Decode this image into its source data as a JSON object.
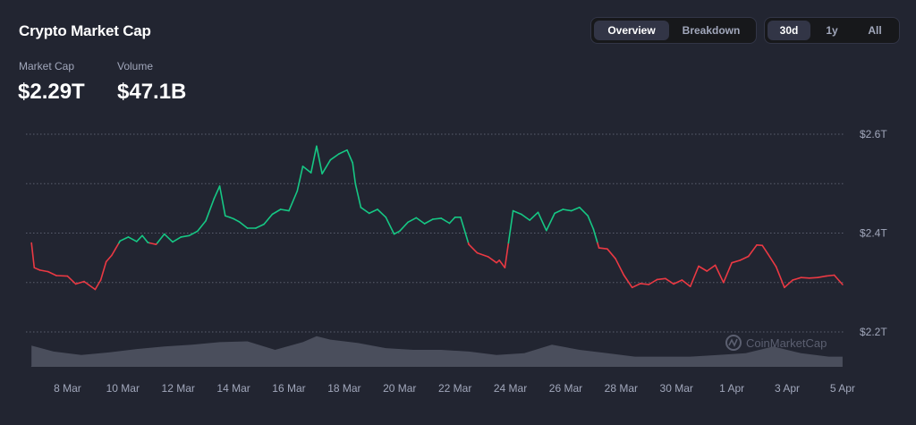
{
  "header": {
    "title": "Crypto Market Cap",
    "view_tabs": [
      {
        "label": "Overview",
        "active": true
      },
      {
        "label": "Breakdown",
        "active": false
      }
    ],
    "range_tabs": [
      {
        "label": "30d",
        "active": true
      },
      {
        "label": "1y",
        "active": false
      },
      {
        "label": "All",
        "active": false
      }
    ]
  },
  "stats": {
    "market_cap_label": "Market Cap",
    "market_cap_value": "$2.29T",
    "volume_label": "Volume",
    "volume_value": "$47.1B"
  },
  "watermark": "CoinMarketCap",
  "colors": {
    "background": "#222531",
    "up": "#16c784",
    "down": "#ea3943",
    "volume": "#585c6b",
    "grid": "#5a5e6e",
    "text_muted": "#a1a7bb"
  },
  "chart_data": {
    "type": "line",
    "baseline": 2.38,
    "y_unit": "T",
    "ylim": [
      2.2,
      2.6
    ],
    "yticks": [
      "$2.6T",
      "$2.4T",
      "$2.2T"
    ],
    "ytick_values": [
      2.6,
      2.4,
      2.2
    ],
    "xlim": [
      6.5,
      36.1
    ],
    "xticks": [
      "8 Mar",
      "10 Mar",
      "12 Mar",
      "14 Mar",
      "16 Mar",
      "18 Mar",
      "20 Mar",
      "22 Mar",
      "24 Mar",
      "26 Mar",
      "28 Mar",
      "30 Mar",
      "1 Apr",
      "3 Apr",
      "5 Apr"
    ],
    "xtick_values": [
      8,
      10,
      12,
      14,
      16,
      18,
      20,
      22,
      24,
      26,
      28,
      30,
      32,
      34,
      36
    ],
    "x_note": "x values are days of March (32 = 1 Apr)",
    "series": [
      {
        "type": "line",
        "x": [
          6.7,
          6.8,
          7.0,
          7.3,
          7.6,
          8.0,
          8.3,
          8.6,
          9.0,
          9.2,
          9.4,
          9.6,
          9.9,
          10.2,
          10.5,
          10.7,
          10.9,
          11.2,
          11.5,
          11.8,
          12.1,
          12.4,
          12.7,
          13.0,
          13.3,
          13.5,
          13.7,
          13.85,
          14.0,
          14.2,
          14.5,
          14.8,
          15.1,
          15.4,
          15.7,
          16.0,
          16.3,
          16.5,
          16.8,
          17.0,
          17.2,
          17.5,
          17.8,
          18.1,
          18.3,
          18.4,
          18.6,
          18.9,
          19.2,
          19.5,
          19.8,
          20.0,
          20.3,
          20.6,
          20.9,
          21.2,
          21.5,
          21.8,
          22.0,
          22.2,
          22.5,
          22.8,
          23.2,
          23.5,
          23.6,
          23.8,
          24.1,
          24.4,
          24.7,
          25.0,
          25.3,
          25.6,
          25.9,
          26.2,
          26.5,
          26.8,
          27.0,
          27.2,
          27.5,
          27.8,
          28.1,
          28.4,
          28.7,
          29.0,
          29.3,
          29.6,
          29.9,
          30.2,
          30.5,
          30.8,
          31.1,
          31.4,
          31.7,
          32.0,
          32.3,
          32.6,
          32.9,
          33.1,
          33.3,
          33.6,
          33.9,
          34.2,
          34.5,
          34.8,
          35.1,
          35.4,
          35.7,
          36.0
        ],
        "y": [
          2.38,
          2.33,
          2.325,
          2.322,
          2.314,
          2.313,
          2.297,
          2.302,
          2.286,
          2.305,
          2.342,
          2.355,
          2.384,
          2.392,
          2.383,
          2.395,
          2.381,
          2.377,
          2.398,
          2.382,
          2.392,
          2.395,
          2.404,
          2.425,
          2.47,
          2.495,
          2.435,
          2.432,
          2.429,
          2.423,
          2.41,
          2.41,
          2.418,
          2.438,
          2.448,
          2.445,
          2.485,
          2.535,
          2.522,
          2.576,
          2.52,
          2.548,
          2.56,
          2.568,
          2.542,
          2.5,
          2.452,
          2.44,
          2.448,
          2.432,
          2.398,
          2.404,
          2.422,
          2.431,
          2.419,
          2.428,
          2.43,
          2.42,
          2.432,
          2.432,
          2.377,
          2.36,
          2.352,
          2.34,
          2.345,
          2.33,
          2.445,
          2.438,
          2.426,
          2.442,
          2.405,
          2.44,
          2.448,
          2.445,
          2.452,
          2.435,
          2.408,
          2.37,
          2.368,
          2.348,
          2.315,
          2.29,
          2.298,
          2.296,
          2.306,
          2.308,
          2.297,
          2.305,
          2.292,
          2.333,
          2.323,
          2.335,
          2.3,
          2.34,
          2.345,
          2.353,
          2.376,
          2.375,
          2.358,
          2.332,
          2.29,
          2.305,
          2.31,
          2.309,
          2.31,
          2.313,
          2.315,
          2.296
        ]
      },
      {
        "type": "area",
        "name": "volume",
        "x": [
          6.7,
          7.5,
          8.5,
          9.5,
          10.5,
          11.5,
          12.5,
          13.5,
          14.5,
          15.5,
          16.5,
          17.0,
          17.5,
          18.5,
          19.5,
          20.5,
          21.5,
          22.5,
          23.5,
          24.5,
          25.5,
          26.5,
          27.5,
          28.5,
          29.5,
          30.5,
          31.5,
          32.5,
          33.5,
          34.5,
          35.5,
          36.0
        ],
        "y": [
          25,
          18,
          14,
          17,
          21,
          24,
          26,
          29,
          30,
          20,
          29,
          36,
          32,
          28,
          22,
          20,
          20,
          18,
          14,
          16,
          26,
          20,
          16,
          12,
          12,
          12,
          14,
          16,
          24,
          16,
          12,
          12
        ]
      }
    ]
  }
}
